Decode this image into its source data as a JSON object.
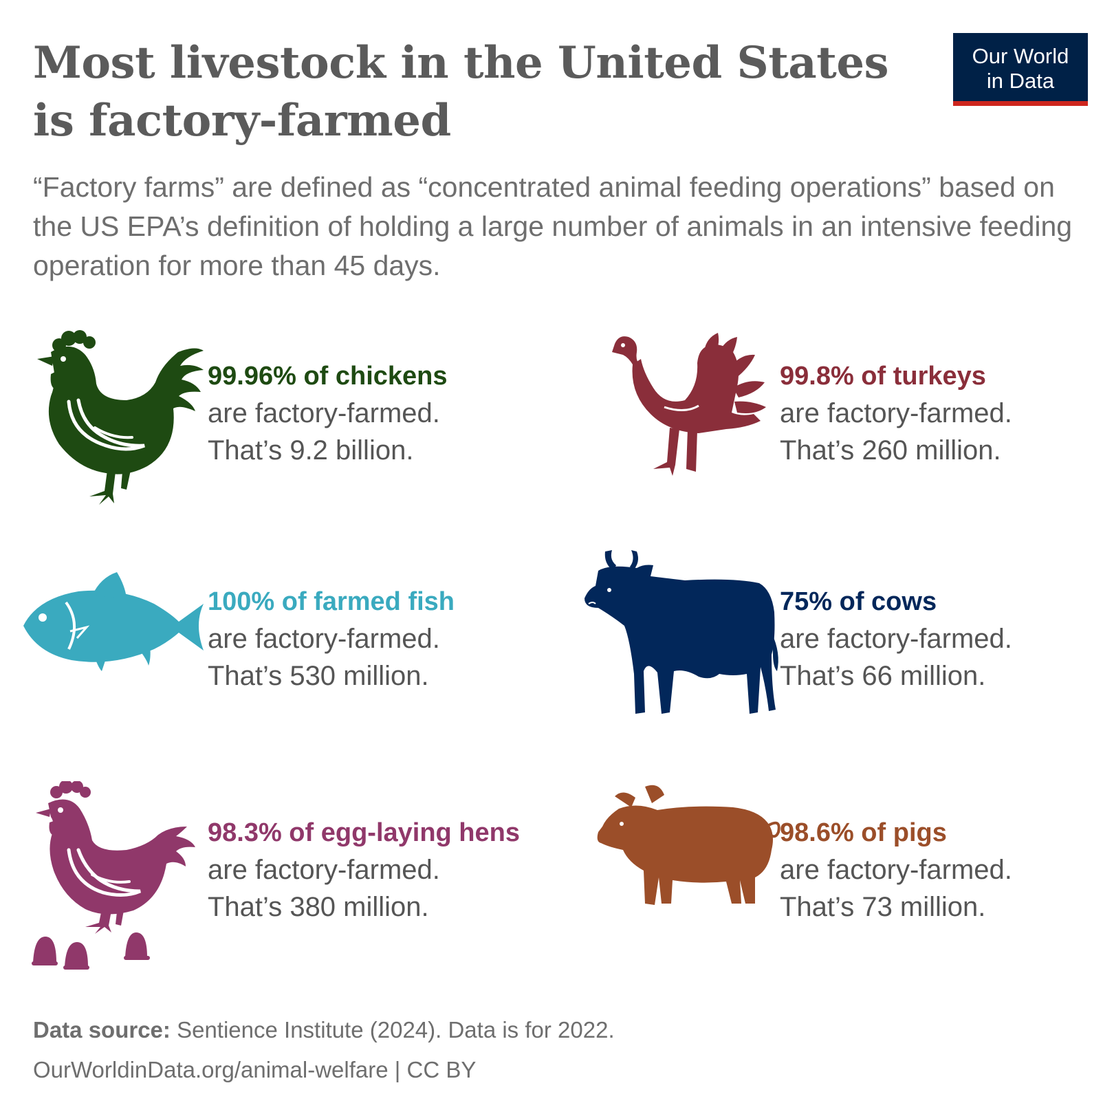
{
  "title": "Most livestock in the United States is factory-farmed",
  "logo": {
    "line1": "Our World",
    "line2": "in Data",
    "bg_color": "#002147",
    "accent_color": "#ce261e"
  },
  "subtitle": "“Factory farms” are defined as “concentrated animal feeding operations” based on the US EPA’s definition of holding a large number of animals in an intensive feeding operation for more than 45 days.",
  "animals": [
    {
      "icon": "chicken-icon",
      "color": "#1e4a12",
      "stat": "99.96% of chickens",
      "line1": "are factory-farmed.",
      "line2": "That’s 9.2 billion."
    },
    {
      "icon": "turkey-icon",
      "color": "#8a2e3a",
      "stat": "99.8% of turkeys",
      "line1": "are factory-farmed.",
      "line2": "That’s 260 million."
    },
    {
      "icon": "fish-icon",
      "color": "#3aaabf",
      "stat": "100% of farmed fish",
      "line1": "are factory-farmed.",
      "line2": "That’s 530 million."
    },
    {
      "icon": "cow-icon",
      "color": "#02275a",
      "stat": "75% of cows",
      "line1": "are factory-farmed.",
      "line2": "That’s 66 million."
    },
    {
      "icon": "hen-with-eggs-icon",
      "color": "#90386a",
      "stat": "98.3% of egg-laying hens",
      "line1": "are factory-farmed.",
      "line2": "That’s 380 million."
    },
    {
      "icon": "pig-icon",
      "color": "#9b4e29",
      "stat": "98.6% of pigs",
      "line1": "are factory-farmed.",
      "line2": "That’s 73 million."
    }
  ],
  "footer": {
    "source_label": "Data source:",
    "source_text": " Sentience Institute (2024). Data is for 2022.",
    "url": "OurWorldinData.org/animal-welfare | CC BY"
  }
}
